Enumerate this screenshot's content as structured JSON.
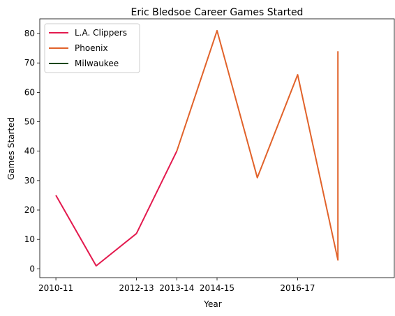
{
  "chart_data": {
    "type": "line",
    "title": "Eric Bledsoe Career Games Started",
    "xlabel": "Year",
    "ylabel": "Games Started",
    "x_ticks": [
      "2010-11",
      "2012-13",
      "2013-14",
      "2014-15",
      "2016-17"
    ],
    "ylim": [
      -3,
      85
    ],
    "y_ticks": [
      0,
      10,
      20,
      30,
      40,
      50,
      60,
      70,
      80
    ],
    "grid": false,
    "legend_position": "top-left",
    "series": [
      {
        "name": "L.A. Clippers",
        "color": "#e31a4e",
        "points": [
          {
            "x": "2010-11",
            "y": 25
          },
          {
            "x": "2011-12",
            "y": 1
          },
          {
            "x": "2012-13",
            "y": 12
          },
          {
            "x": "2013-14",
            "y": 40
          }
        ]
      },
      {
        "name": "Phoenix",
        "color": "#e1622a",
        "points": [
          {
            "x": "2013-14",
            "y": 40
          },
          {
            "x": "2014-15",
            "y": 81
          },
          {
            "x": "2015-16",
            "y": 31
          },
          {
            "x": "2016-17",
            "y": 66
          },
          {
            "x": "2017-18",
            "y": 3
          },
          {
            "x": "2017-18",
            "y": 74
          }
        ]
      },
      {
        "name": "Milwaukee",
        "color": "#00471b",
        "points": []
      }
    ]
  }
}
